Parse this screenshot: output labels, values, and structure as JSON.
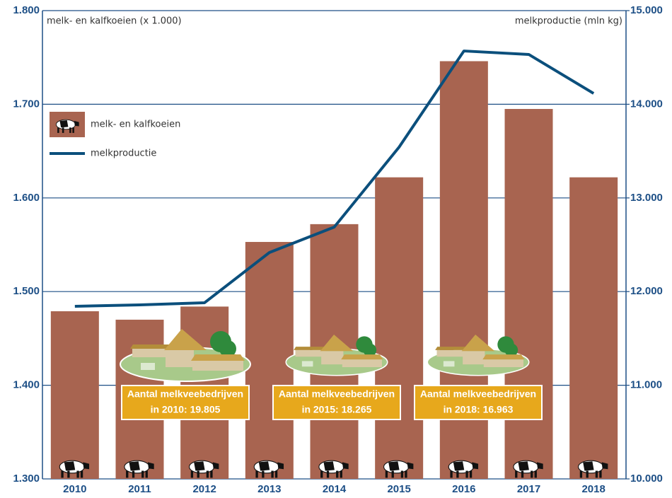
{
  "chart_data": {
    "type": "bar",
    "y_label": "melk- en kalfkoeien (x 1.000)",
    "y2_label": "melkproductie (mln kg)",
    "categories": [
      "2010",
      "2011",
      "2012",
      "2013",
      "2014",
      "2015",
      "2016",
      "2017",
      "2018"
    ],
    "series": [
      {
        "name": "melk- en kalfkoeien",
        "type": "bar",
        "color": "#a86450",
        "values": [
          1479,
          1470,
          1484,
          1553,
          1572,
          1622,
          1746,
          1695,
          1622
        ]
      },
      {
        "name": "melkproductie",
        "type": "line",
        "axis": "y2",
        "color": "#0b4f7c",
        "values": [
          11843,
          11858,
          11881,
          12417,
          12689,
          13542,
          14569,
          14532,
          14116
        ]
      }
    ],
    "ylim": [
      1300,
      1800
    ],
    "yticks": [
      {
        "value": 1300,
        "label": "1.300"
      },
      {
        "value": 1400,
        "label": "1.400"
      },
      {
        "value": 1500,
        "label": "1.500"
      },
      {
        "value": 1600,
        "label": "1.600"
      },
      {
        "value": 1700,
        "label": "1.700"
      },
      {
        "value": 1800,
        "label": "1.800"
      }
    ],
    "y2lim": [
      10000,
      15000
    ],
    "y2ticks": [
      {
        "value": 10000,
        "label": "10.000"
      },
      {
        "value": 11000,
        "label": "11.000"
      },
      {
        "value": 12000,
        "label": "12.000"
      },
      {
        "value": 13000,
        "label": "13.000"
      },
      {
        "value": 14000,
        "label": "14.000"
      },
      {
        "value": 15000,
        "label": "15.000"
      }
    ],
    "grid": true,
    "annotations": [
      {
        "lines": [
          "Aantal melkveebedrijven",
          "in 2010: 19.805"
        ]
      },
      {
        "lines": [
          "Aantal melkveebedrijven",
          "in 2015: 18.265"
        ]
      },
      {
        "lines": [
          "Aantal melkveebedrijven",
          "in 2018: 16.963"
        ]
      }
    ]
  }
}
